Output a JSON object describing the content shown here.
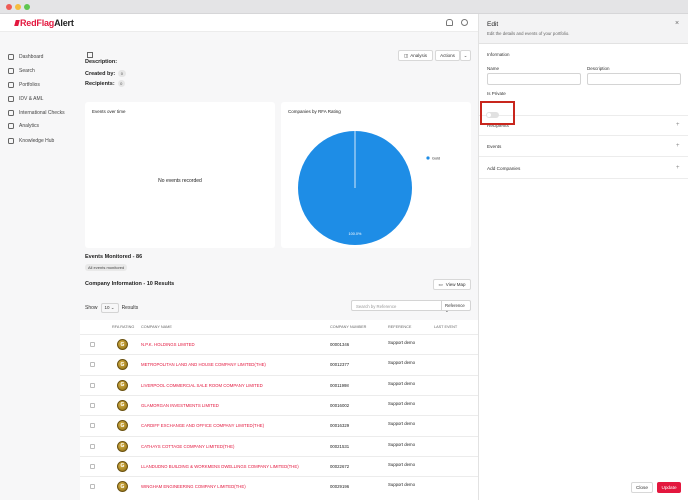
{
  "brand": {
    "name_red": "RedFlag",
    "name_dark": "Alert"
  },
  "sidebar": {
    "items": [
      {
        "label": "Dashboard",
        "icon": "dashboard-icon"
      },
      {
        "label": "Search",
        "icon": "search-icon"
      },
      {
        "label": "Portfolios",
        "icon": "portfolio-icon"
      },
      {
        "label": "IDV & AML",
        "icon": "id-icon"
      },
      {
        "label": "International Checks",
        "icon": "globe-icon"
      },
      {
        "label": "Analytics",
        "icon": "analytics-icon"
      },
      {
        "label": "Knowledge Hub",
        "icon": "knowledge-icon"
      }
    ]
  },
  "portfolio": {
    "description_label": "Description:",
    "created_by_label": "Created by:",
    "created_by_count": "0",
    "recipients_label": "Recipients:",
    "recipients_count": "0",
    "analysis_button": "Analysis",
    "actions_button": "Actions"
  },
  "events_card": {
    "title": "Events over time",
    "empty_text": "No events recorded"
  },
  "chart_data": {
    "type": "pie",
    "title": "Companies by RFA Rating",
    "categories": [
      "Gold"
    ],
    "values": [
      100.0
    ],
    "slice_label": "100.0%",
    "legend": [
      "Gold"
    ],
    "legend_position": "top-right",
    "colors": [
      "#1e8de6"
    ]
  },
  "events_monitored": {
    "title": "Events Monitored - 86",
    "tag": "All events monitored"
  },
  "company_info": {
    "title": "Company Information - 10 Results",
    "view_map": "View Map",
    "show_label": "Show",
    "show_value": "10",
    "results_label": "Results",
    "search_placeholder": "Search by Reference",
    "search_filter": "Reference",
    "columns": [
      "RFA RATING",
      "COMPANY NAME",
      "COMPANY NUMBER",
      "REFERENCE",
      "LAST EVENT"
    ],
    "rows": [
      {
        "rating": "G",
        "name": "N.P.K. HOLDINGS LIMITED",
        "number": "00001346",
        "reference": "Support demo"
      },
      {
        "rating": "G",
        "name": "METROPOLITAN LAND AND HOUSE COMPANY LIMITED(THE)",
        "number": "00012377",
        "reference": "Support demo"
      },
      {
        "rating": "G",
        "name": "LIVERPOOL COMMERCIAL SALE ROOM COMPANY LIMITED",
        "number": "00011998",
        "reference": "Support demo"
      },
      {
        "rating": "G",
        "name": "GLAMORGAN INVESTMENTS LIMITED",
        "number": "00016002",
        "reference": "Support demo"
      },
      {
        "rating": "G",
        "name": "CARDIFF EXCHANGE AND OFFICE COMPANY LIMITED(THE)",
        "number": "00016329",
        "reference": "Support demo"
      },
      {
        "rating": "G",
        "name": "CATHAYS COTTAGE COMPANY LIMITED(THE)",
        "number": "00021531",
        "reference": "Support demo"
      },
      {
        "rating": "G",
        "name": "LLANDUDNO BUILDING & WORKMENS DWELLINGS COMPANY LIMITED(THE)",
        "number": "00022672",
        "reference": "Support demo"
      },
      {
        "rating": "G",
        "name": "WINGHAM ENGINEERING COMPANY LIMITED(THE)",
        "number": "00029196",
        "reference": "Support demo"
      }
    ]
  },
  "edit_panel": {
    "title": "Edit",
    "subtitle": "Edit the details and events of your portfolio.",
    "information_label": "Information",
    "name_label": "Name",
    "name_value": "",
    "description_label": "Description",
    "description_value": "",
    "is_private_label": "Is Private",
    "is_private": false,
    "sections": [
      "Recipients",
      "Events",
      "Add Companies"
    ],
    "close_button": "Close",
    "update_button": "Update"
  },
  "colors": {
    "brand_red": "#e3173e",
    "highlight": "#c8261d",
    "pie_blue": "#1e8de6"
  }
}
